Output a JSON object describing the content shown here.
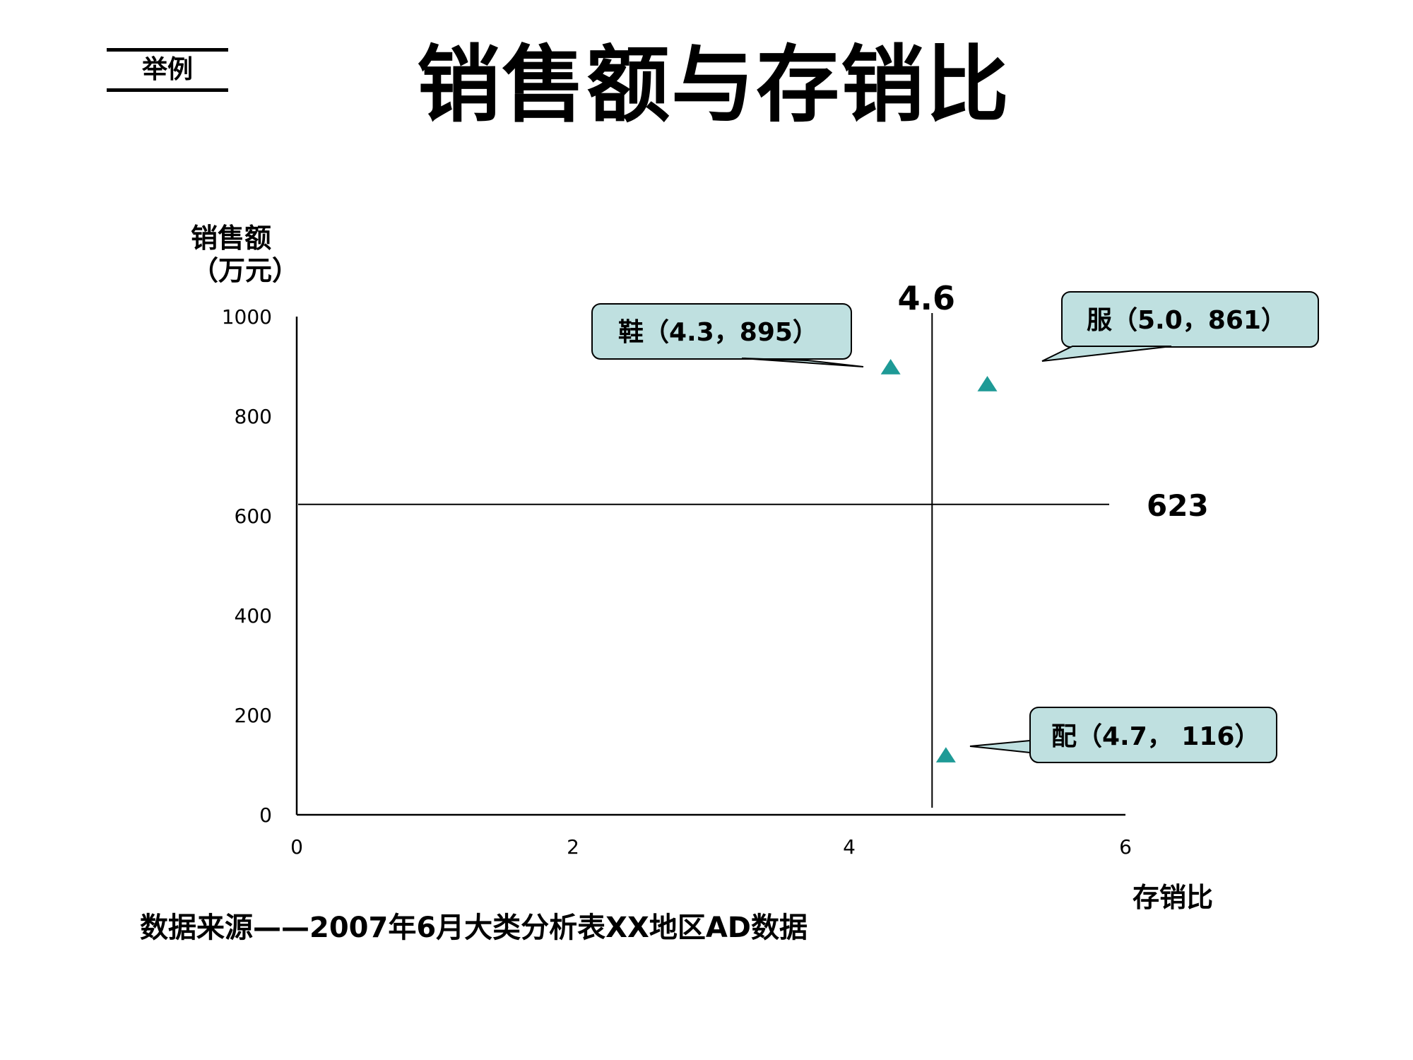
{
  "tag_label": "举例",
  "title": "销售额与存销比",
  "footer": "数据来源——2007年6月大类分析表XX地区AD数据",
  "chart_data": {
    "type": "scatter",
    "ylabel_line1": "销售额",
    "ylabel_line2": "（万元）",
    "xlabel": "存销比",
    "xlim": [
      0,
      6
    ],
    "ylim": [
      0,
      1000
    ],
    "xticks": [
      0,
      2,
      4,
      6
    ],
    "yticks": [
      0,
      200,
      400,
      600,
      800,
      1000
    ],
    "grid": false,
    "marker_color": "#1E9A96",
    "callout_fill": "#BFE0E0",
    "points": [
      {
        "x": 4.3,
        "y": 895,
        "label": "鞋（4.3，895）"
      },
      {
        "x": 5.0,
        "y": 861,
        "label": "服（5.0，861）"
      },
      {
        "x": 4.7,
        "y": 116,
        "label": "配（4.7， 116）"
      }
    ],
    "reference_lines": {
      "vertical": {
        "x": 4.6,
        "label": "4.6"
      },
      "horizontal": {
        "y": 623,
        "label": "623"
      }
    }
  }
}
